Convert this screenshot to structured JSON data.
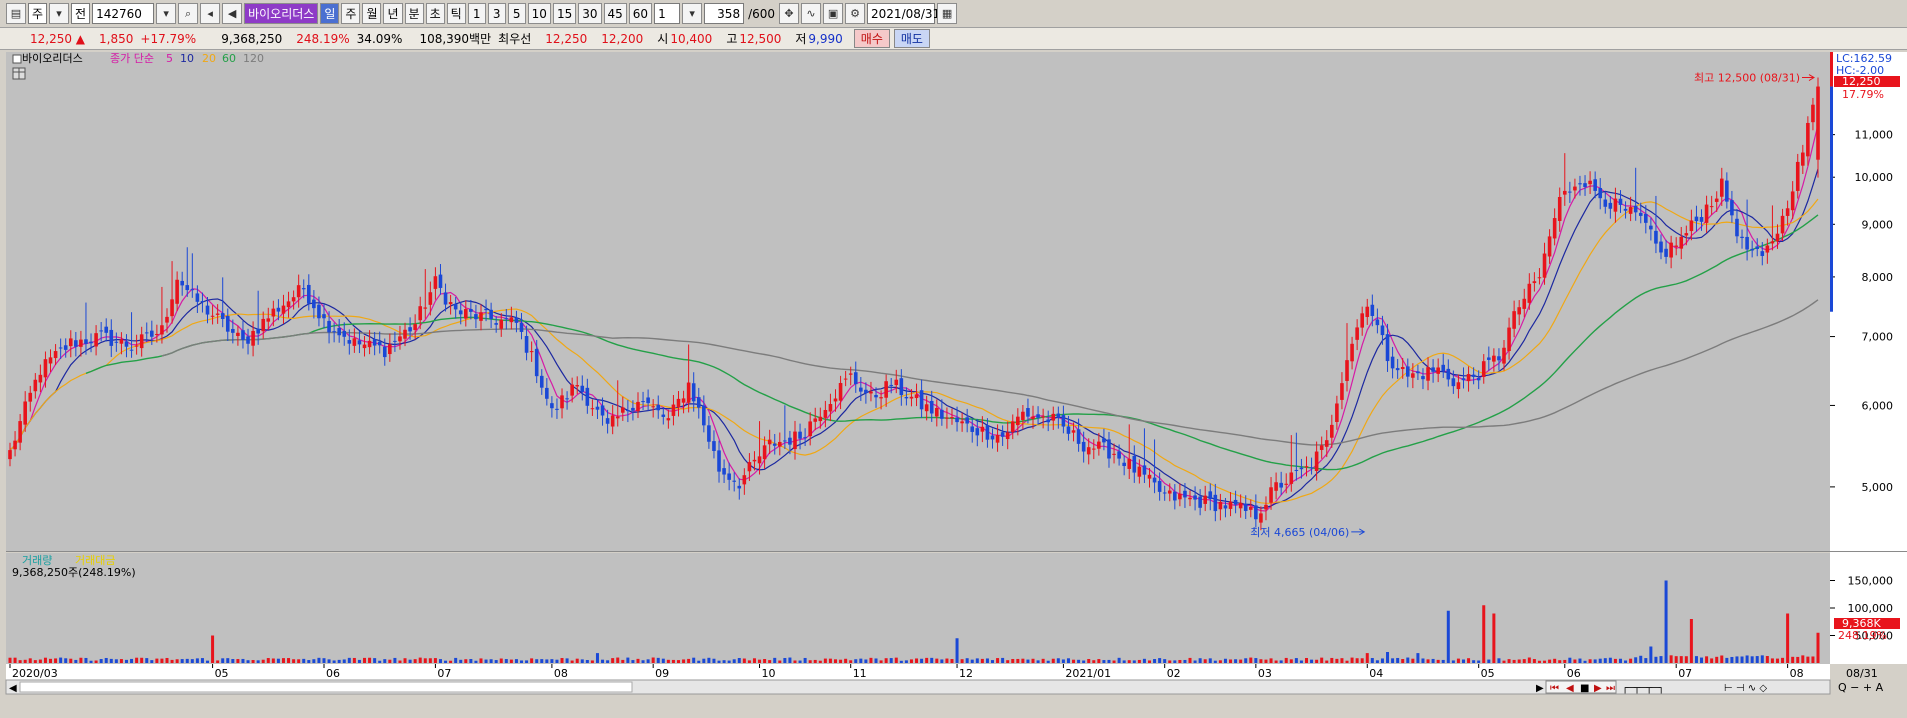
{
  "toolbar": {
    "market": "주",
    "type": "전",
    "code": "142760",
    "name": "바이오리더스",
    "periods": [
      "일",
      "주",
      "월",
      "년",
      "분",
      "초",
      "틱"
    ],
    "numbers": [
      "1",
      "3",
      "5",
      "10",
      "15",
      "30",
      "45",
      "60"
    ],
    "unit": "1",
    "count": "358",
    "max": "/600",
    "date": "2021/08/31"
  },
  "quote": {
    "price": "12,250 ▲",
    "change": "1,850",
    "change_pct": "+17.79%",
    "volume": "9,368,250",
    "vol_ratio": "248.19%",
    "turnover": "34.09%",
    "amount": "108,390백만",
    "best_label": "최우선",
    "best_ask": "12,250",
    "best_bid": "12,200",
    "open_label": "시",
    "open": "10,400",
    "high_label": "고",
    "high": "12,500",
    "low_label": "저",
    "low": "9,990",
    "buy": "매수",
    "sell": "매도"
  },
  "legend": {
    "name": "바이오리더스",
    "ma_label": "종가 단순",
    "ma": [
      "5",
      "10",
      "20",
      "60",
      "120"
    ]
  },
  "annotations": {
    "high": "최고 12,500 (08/31)",
    "low": "최저 4,665 (04/06)"
  },
  "right_labels": {
    "lc": "LC:162.59",
    "hc": "HC:-2.00",
    "price": "12,250",
    "pct": "17.79%",
    "vol": "9,368K",
    "vol_pct": "248.19%"
  },
  "volume_legend": {
    "vol": "거래량",
    "amt": "거래대금",
    "value": "9,368,250주(248.19%)"
  },
  "colors": {
    "up": "#e8141c",
    "down": "#1a48d6",
    "ma5": "#d61aa6",
    "ma10": "#1c28a0",
    "ma20": "#f0a814",
    "ma60": "#24a048",
    "ma120": "#7c7c7c",
    "bg": "#c0c0c0"
  },
  "chart_data": {
    "type": "candlestick",
    "y_ticks": [
      5000,
      6000,
      7000,
      8000,
      9000,
      10000,
      11000
    ],
    "y_scale": "log",
    "ylim": [
      4400,
      13000
    ],
    "vol_ticks": [
      "50,000",
      "100,000",
      "150,000"
    ],
    "x_ticks": [
      {
        "label": "2020/03",
        "i": 0
      },
      {
        "label": "05",
        "i": 40
      },
      {
        "label": "06",
        "i": 62
      },
      {
        "label": "07",
        "i": 84
      },
      {
        "label": "08",
        "i": 107
      },
      {
        "label": "09",
        "i": 127
      },
      {
        "label": "10",
        "i": 148
      },
      {
        "label": "11",
        "i": 166
      },
      {
        "label": "12",
        "i": 187
      },
      {
        "label": "2021/01",
        "i": 208
      },
      {
        "label": "02",
        "i": 228
      },
      {
        "label": "03",
        "i": 246
      },
      {
        "label": "04",
        "i": 268
      },
      {
        "label": "05",
        "i": 290
      },
      {
        "label": "06",
        "i": 307
      },
      {
        "label": "07",
        "i": 329
      },
      {
        "label": "08",
        "i": 351
      }
    ],
    "last_x_label": "08/31",
    "anchors": [
      [
        0,
        5400
      ],
      [
        6,
        6500
      ],
      [
        12,
        6900
      ],
      [
        18,
        7000
      ],
      [
        24,
        6850
      ],
      [
        30,
        7100
      ],
      [
        33,
        8000
      ],
      [
        36,
        7650
      ],
      [
        42,
        7200
      ],
      [
        46,
        6900
      ],
      [
        52,
        7400
      ],
      [
        58,
        7800
      ],
      [
        62,
        7250
      ],
      [
        68,
        6900
      ],
      [
        74,
        6800
      ],
      [
        80,
        7200
      ],
      [
        84,
        7900
      ],
      [
        88,
        7400
      ],
      [
        94,
        7300
      ],
      [
        100,
        7200
      ],
      [
        104,
        6500
      ],
      [
        107,
        5900
      ],
      [
        112,
        6300
      ],
      [
        118,
        5700
      ],
      [
        124,
        6100
      ],
      [
        130,
        5800
      ],
      [
        134,
        6300
      ],
      [
        140,
        5200
      ],
      [
        144,
        5050
      ],
      [
        150,
        5500
      ],
      [
        156,
        5600
      ],
      [
        162,
        6100
      ],
      [
        166,
        6400
      ],
      [
        170,
        6100
      ],
      [
        174,
        6300
      ],
      [
        180,
        6000
      ],
      [
        186,
        5800
      ],
      [
        190,
        5700
      ],
      [
        196,
        5600
      ],
      [
        200,
        5900
      ],
      [
        206,
        5800
      ],
      [
        212,
        5500
      ],
      [
        218,
        5400
      ],
      [
        224,
        5100
      ],
      [
        228,
        4900
      ],
      [
        234,
        4850
      ],
      [
        240,
        4800
      ],
      [
        246,
        4700
      ],
      [
        250,
        5000
      ],
      [
        256,
        5200
      ],
      [
        260,
        5500
      ],
      [
        264,
        6700
      ],
      [
        268,
        7600
      ],
      [
        272,
        6700
      ],
      [
        276,
        6400
      ],
      [
        282,
        6500
      ],
      [
        286,
        6300
      ],
      [
        290,
        6450
      ],
      [
        294,
        6700
      ],
      [
        298,
        7500
      ],
      [
        302,
        8000
      ],
      [
        306,
        9500
      ],
      [
        310,
        10000
      ],
      [
        314,
        9600
      ],
      [
        318,
        9300
      ],
      [
        322,
        9100
      ],
      [
        326,
        8400
      ],
      [
        330,
        8700
      ],
      [
        334,
        9200
      ],
      [
        338,
        9800
      ],
      [
        342,
        8600
      ],
      [
        346,
        8300
      ],
      [
        350,
        9100
      ],
      [
        354,
        10600
      ],
      [
        357,
        12250
      ]
    ]
  }
}
